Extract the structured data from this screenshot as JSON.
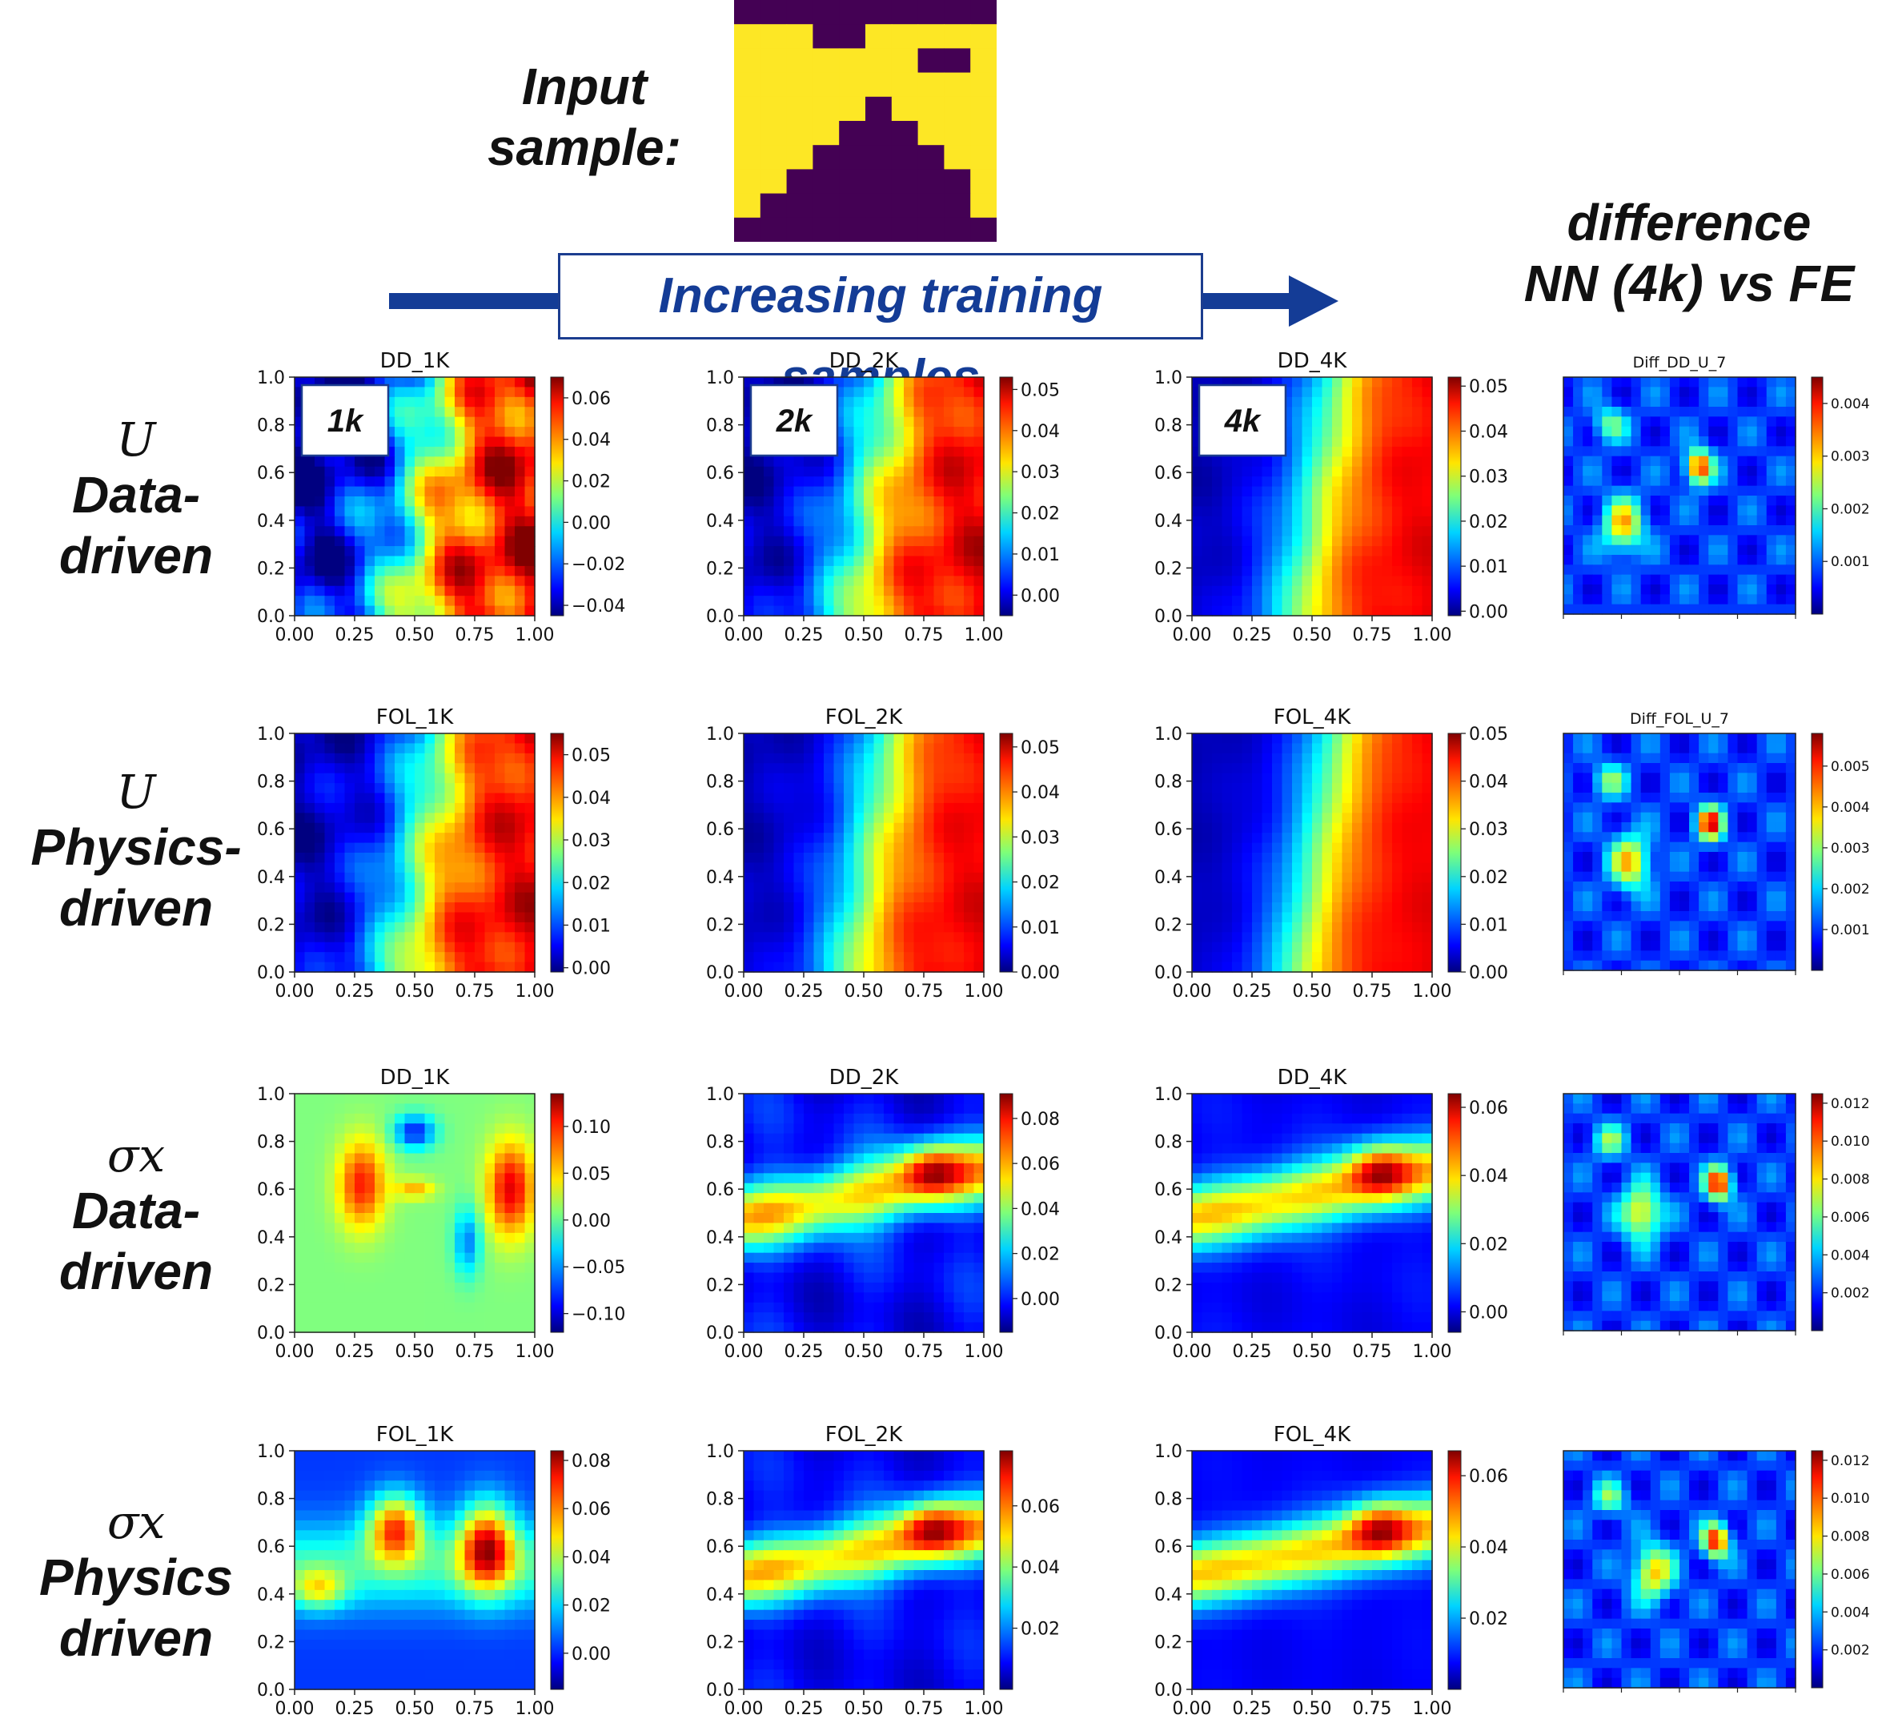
{
  "header": {
    "input_label_line1": "Input",
    "input_label_line2": "sample:",
    "banner": "Increasing training samples",
    "diff_title_line1": "difference",
    "diff_title_line2": "NN (4k) vs FE"
  },
  "input_sample": {
    "grid_rows": 10,
    "grid_cols": 10,
    "colors": {
      "zero": "#440154",
      "one": "#fde725"
    },
    "values": [
      [
        0,
        0,
        0,
        0,
        0,
        0,
        0,
        0,
        0,
        0
      ],
      [
        1,
        1,
        1,
        0,
        0,
        1,
        1,
        1,
        1,
        1
      ],
      [
        1,
        1,
        1,
        1,
        1,
        1,
        1,
        0,
        0,
        1
      ],
      [
        1,
        1,
        1,
        1,
        1,
        1,
        1,
        1,
        1,
        1
      ],
      [
        1,
        1,
        1,
        1,
        1,
        0,
        1,
        1,
        1,
        1
      ],
      [
        1,
        1,
        1,
        1,
        0,
        0,
        0,
        1,
        1,
        1
      ],
      [
        1,
        1,
        1,
        0,
        0,
        0,
        0,
        0,
        1,
        1
      ],
      [
        1,
        1,
        0,
        0,
        0,
        0,
        0,
        0,
        0,
        1
      ],
      [
        1,
        0,
        0,
        0,
        0,
        0,
        0,
        0,
        0,
        1
      ],
      [
        0,
        0,
        0,
        0,
        0,
        0,
        0,
        0,
        0,
        0
      ]
    ]
  },
  "rows": [
    {
      "symbol": "U",
      "line1": "Data-",
      "line2": "driven"
    },
    {
      "symbol": "U",
      "line1": "Physics-",
      "line2": "driven"
    },
    {
      "symbol": "σx",
      "line1": "Data-",
      "line2": "driven"
    },
    {
      "symbol": "σx",
      "line1": "Physics",
      "line2": "driven"
    }
  ],
  "badges": [
    "1k",
    "2k",
    "4k"
  ],
  "colors": {
    "accent": "#143c96",
    "jet_low": "#00007f",
    "jet_high": "#7f0000"
  },
  "chart_data": [
    {
      "type": "heatmap",
      "title": "DD_1K",
      "row": 0,
      "col": 0,
      "xlabel": "",
      "ylabel": "",
      "xticks": [
        "0.00",
        "0.25",
        "0.50",
        "0.75",
        "1.00"
      ],
      "yticks": [
        "0.0",
        "0.2",
        "0.4",
        "0.6",
        "0.8",
        "1.0"
      ],
      "colorbar": {
        "ticks": [
          "0.06",
          "0.04",
          "0.02",
          "0.00",
          "−0.02",
          "−0.04"
        ],
        "range": [
          -0.045,
          0.07
        ]
      },
      "badge": "1k"
    },
    {
      "type": "heatmap",
      "title": "DD_2K",
      "row": 0,
      "col": 1,
      "xticks": [
        "0.00",
        "0.25",
        "0.50",
        "0.75",
        "1.00"
      ],
      "yticks": [
        "0.0",
        "0.2",
        "0.4",
        "0.6",
        "0.8",
        "1.0"
      ],
      "colorbar": {
        "ticks": [
          "0.05",
          "0.04",
          "0.03",
          "0.02",
          "0.01",
          "0.00"
        ],
        "range": [
          -0.005,
          0.053
        ]
      },
      "badge": "2k"
    },
    {
      "type": "heatmap",
      "title": "DD_4K",
      "row": 0,
      "col": 2,
      "xticks": [
        "0.00",
        "0.25",
        "0.50",
        "0.75",
        "1.00"
      ],
      "yticks": [
        "0.0",
        "0.2",
        "0.4",
        "0.6",
        "0.8",
        "1.0"
      ],
      "colorbar": {
        "ticks": [
          "0.05",
          "0.04",
          "0.03",
          "0.02",
          "0.01",
          "0.00"
        ],
        "range": [
          -0.001,
          0.052
        ]
      },
      "badge": "4k"
    },
    {
      "type": "heatmap",
      "title": "Diff_DD_U_7",
      "row": 0,
      "col": 3,
      "small": true,
      "colorbar": {
        "ticks": [
          "0.004",
          "0.003",
          "0.002",
          "0.001"
        ],
        "range": [
          0,
          0.0045
        ]
      }
    },
    {
      "type": "heatmap",
      "title": "FOL_1K",
      "row": 1,
      "col": 0,
      "xticks": [
        "0.00",
        "0.25",
        "0.50",
        "0.75",
        "1.00"
      ],
      "yticks": [
        "0.0",
        "0.2",
        "0.4",
        "0.6",
        "0.8",
        "1.0"
      ],
      "colorbar": {
        "ticks": [
          "0.05",
          "0.04",
          "0.03",
          "0.02",
          "0.01",
          "0.00"
        ],
        "range": [
          -0.001,
          0.055
        ]
      }
    },
    {
      "type": "heatmap",
      "title": "FOL_2K",
      "row": 1,
      "col": 1,
      "xticks": [
        "0.00",
        "0.25",
        "0.50",
        "0.75",
        "1.00"
      ],
      "yticks": [
        "0.0",
        "0.2",
        "0.4",
        "0.6",
        "0.8",
        "1.0"
      ],
      "colorbar": {
        "ticks": [
          "0.05",
          "0.04",
          "0.03",
          "0.02",
          "0.01",
          "0.00"
        ],
        "range": [
          0,
          0.053
        ]
      }
    },
    {
      "type": "heatmap",
      "title": "FOL_4K",
      "row": 1,
      "col": 2,
      "xticks": [
        "0.00",
        "0.25",
        "0.50",
        "0.75",
        "1.00"
      ],
      "yticks": [
        "0.0",
        "0.2",
        "0.4",
        "0.6",
        "0.8",
        "1.0"
      ],
      "colorbar": {
        "ticks": [
          "0.05",
          "0.04",
          "0.03",
          "0.02",
          "0.01",
          "0.00"
        ],
        "range": [
          0,
          0.05
        ]
      }
    },
    {
      "type": "heatmap",
      "title": "Diff_FOL_U_7",
      "row": 1,
      "col": 3,
      "small": true,
      "colorbar": {
        "ticks": [
          "0.005",
          "0.004",
          "0.003",
          "0.002",
          "0.001"
        ],
        "range": [
          0,
          0.0058
        ]
      }
    },
    {
      "type": "heatmap",
      "title": "DD_1K",
      "row": 2,
      "col": 0,
      "xticks": [
        "0.00",
        "0.25",
        "0.50",
        "0.75",
        "1.00"
      ],
      "yticks": [
        "0.0",
        "0.2",
        "0.4",
        "0.6",
        "0.8",
        "1.0"
      ],
      "colorbar": {
        "ticks": [
          "0.10",
          "0.05",
          "0.00",
          "−0.05",
          "−0.10"
        ],
        "range": [
          -0.12,
          0.135
        ]
      }
    },
    {
      "type": "heatmap",
      "title": "DD_2K",
      "row": 2,
      "col": 1,
      "xticks": [
        "0.00",
        "0.25",
        "0.50",
        "0.75",
        "1.00"
      ],
      "yticks": [
        "0.0",
        "0.2",
        "0.4",
        "0.6",
        "0.8",
        "1.0"
      ],
      "colorbar": {
        "ticks": [
          "0.08",
          "0.06",
          "0.04",
          "0.02",
          "0.00"
        ],
        "range": [
          -0.015,
          0.091
        ]
      }
    },
    {
      "type": "heatmap",
      "title": "DD_4K",
      "row": 2,
      "col": 2,
      "xticks": [
        "0.00",
        "0.25",
        "0.50",
        "0.75",
        "1.00"
      ],
      "yticks": [
        "0.0",
        "0.2",
        "0.4",
        "0.6",
        "0.8",
        "1.0"
      ],
      "colorbar": {
        "ticks": [
          "0.06",
          "0.04",
          "0.02",
          "0.00"
        ],
        "range": [
          -0.006,
          0.064
        ]
      }
    },
    {
      "type": "heatmap",
      "title": "",
      "row": 2,
      "col": 3,
      "small": true,
      "colorbar": {
        "ticks": [
          "0.012",
          "0.010",
          "0.008",
          "0.006",
          "0.004",
          "0.002"
        ],
        "range": [
          0,
          0.0125
        ]
      }
    },
    {
      "type": "heatmap",
      "title": "FOL_1K",
      "row": 3,
      "col": 0,
      "xticks": [
        "0.00",
        "0.25",
        "0.50",
        "0.75",
        "1.00"
      ],
      "yticks": [
        "0.0",
        "0.2",
        "0.4",
        "0.6",
        "0.8",
        "1.0"
      ],
      "colorbar": {
        "ticks": [
          "0.08",
          "0.06",
          "0.04",
          "0.02",
          "0.00"
        ],
        "range": [
          -0.015,
          0.084
        ]
      }
    },
    {
      "type": "heatmap",
      "title": "FOL_2K",
      "row": 3,
      "col": 1,
      "xticks": [
        "0.00",
        "0.25",
        "0.50",
        "0.75",
        "1.00"
      ],
      "yticks": [
        "0.0",
        "0.2",
        "0.4",
        "0.6",
        "0.8",
        "1.0"
      ],
      "colorbar": {
        "ticks": [
          "0.06",
          "0.04",
          "0.02"
        ],
        "range": [
          0.0,
          0.078
        ]
      }
    },
    {
      "type": "heatmap",
      "title": "FOL_4K",
      "row": 3,
      "col": 2,
      "xticks": [
        "0.00",
        "0.25",
        "0.50",
        "0.75",
        "1.00"
      ],
      "yticks": [
        "0.0",
        "0.2",
        "0.4",
        "0.6",
        "0.8",
        "1.0"
      ],
      "colorbar": {
        "ticks": [
          "0.06",
          "0.04",
          "0.02"
        ],
        "range": [
          0.0,
          0.067
        ]
      }
    },
    {
      "type": "heatmap",
      "title": "",
      "row": 3,
      "col": 3,
      "small": true,
      "colorbar": {
        "ticks": [
          "0.012",
          "0.010",
          "0.008",
          "0.006",
          "0.004",
          "0.002"
        ],
        "range": [
          0,
          0.0125
        ]
      }
    }
  ]
}
